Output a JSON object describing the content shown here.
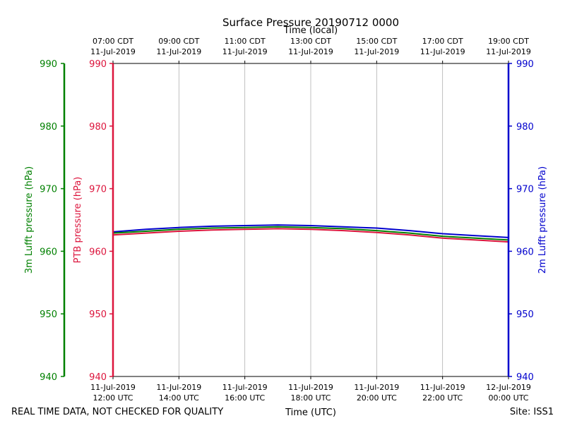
{
  "chart_data": {
    "type": "line",
    "title": "Surface Pressure 20190712 0000",
    "top_axis": {
      "label": "Time (local)",
      "ticks": [
        [
          "07:00 CDT",
          "11-Jul-2019"
        ],
        [
          "09:00 CDT",
          "11-Jul-2019"
        ],
        [
          "11:00 CDT",
          "11-Jul-2019"
        ],
        [
          "13:00 CDT",
          "11-Jul-2019"
        ],
        [
          "15:00 CDT",
          "11-Jul-2019"
        ],
        [
          "17:00 CDT",
          "11-Jul-2019"
        ],
        [
          "19:00 CDT",
          "11-Jul-2019"
        ]
      ]
    },
    "bottom_axis": {
      "label": "Time (UTC)",
      "ticks": [
        [
          "11-Jul-2019",
          "12:00 UTC"
        ],
        [
          "11-Jul-2019",
          "14:00 UTC"
        ],
        [
          "11-Jul-2019",
          "16:00 UTC"
        ],
        [
          "11-Jul-2019",
          "18:00 UTC"
        ],
        [
          "11-Jul-2019",
          "20:00 UTC"
        ],
        [
          "11-Jul-2019",
          "22:00 UTC"
        ],
        [
          "12-Jul-2019",
          "00:00 UTC"
        ]
      ]
    },
    "xlim": [
      "2019-07-11T12:00Z",
      "2019-07-12T00:00Z"
    ],
    "ylim": [
      940,
      990
    ],
    "y_ticks": [
      940,
      950,
      960,
      970,
      980,
      990
    ],
    "axes": {
      "green": {
        "label": "3m Lufft pressure (hPa)",
        "color": "#008000"
      },
      "crimson": {
        "label": "PTB pressure (hPa)",
        "color": "#DC143C"
      },
      "blue": {
        "label": "2m Lufft pressure (hPa)",
        "color": "#0000CD"
      }
    },
    "grid": "vertical",
    "x": [
      "2019-07-11T12:00Z",
      "2019-07-11T13:00Z",
      "2019-07-11T14:00Z",
      "2019-07-11T15:00Z",
      "2019-07-11T16:00Z",
      "2019-07-11T17:00Z",
      "2019-07-11T18:00Z",
      "2019-07-11T19:00Z",
      "2019-07-11T20:00Z",
      "2019-07-11T21:00Z",
      "2019-07-11T22:00Z",
      "2019-07-11T23:00Z",
      "2019-07-12T00:00Z"
    ],
    "series": [
      {
        "axis": "blue",
        "color": "#0000CD",
        "values": [
          963.1,
          963.5,
          963.8,
          964.0,
          964.1,
          964.2,
          964.1,
          963.9,
          963.7,
          963.3,
          962.8,
          962.5,
          962.2
        ]
      },
      {
        "axis": "green",
        "color": "#008000",
        "values": [
          962.9,
          963.2,
          963.5,
          963.7,
          963.8,
          963.9,
          963.8,
          963.6,
          963.3,
          962.9,
          962.4,
          962.1,
          961.8
        ]
      },
      {
        "axis": "crimson",
        "color": "#DC143C",
        "values": [
          962.6,
          962.9,
          963.2,
          963.4,
          963.5,
          963.6,
          963.5,
          963.3,
          963.0,
          962.6,
          962.1,
          961.8,
          961.5
        ]
      }
    ]
  },
  "footer": {
    "quality_note": "REAL TIME DATA, NOT CHECKED FOR QUALITY",
    "site": "Site: ISS1"
  }
}
